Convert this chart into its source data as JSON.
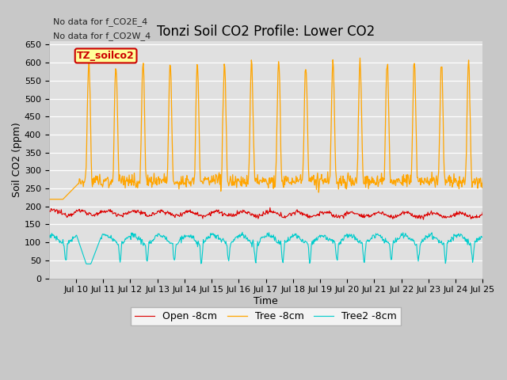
{
  "title": "Tonzi Soil CO2 Profile: Lower CO2",
  "xlabel": "Time",
  "ylabel": "Soil CO2 (ppm)",
  "annotations": [
    "No data for f_CO2E_4",
    "No data for f_CO2W_4"
  ],
  "legend_label": "TZ_soilco2",
  "legend_entries": [
    "Open -8cm",
    "Tree -8cm",
    "Tree2 -8cm"
  ],
  "legend_colors": [
    "#dd0000",
    "#ffa500",
    "#00cccc"
  ],
  "fig_bg_color": "#c8c8c8",
  "plot_bg_color": "#e0e0e0",
  "ylim": [
    0,
    660
  ],
  "yticks": [
    0,
    50,
    100,
    150,
    200,
    250,
    300,
    350,
    400,
    450,
    500,
    550,
    600,
    650
  ],
  "title_fontsize": 12,
  "axis_label_fontsize": 9,
  "tick_fontsize": 8,
  "annotation_fontsize": 8
}
